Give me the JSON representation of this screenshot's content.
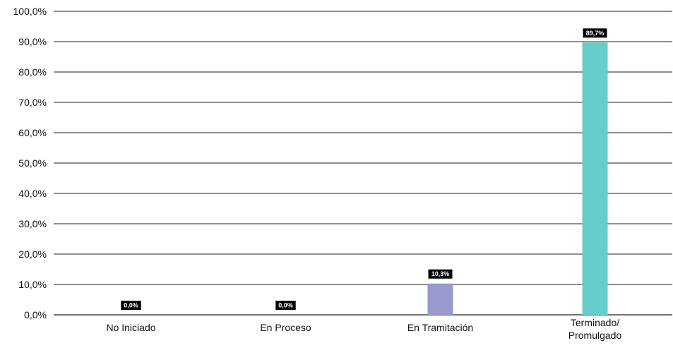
{
  "chart_data": {
    "type": "bar",
    "categories": [
      [
        "No Iniciado"
      ],
      [
        "En Proceso"
      ],
      [
        "En Tramitación"
      ],
      [
        "Terminado/",
        "Promulgado"
      ]
    ],
    "values": [
      0.0,
      0.0,
      10.3,
      89.7
    ],
    "data_labels": [
      "0,0%",
      "0,0%",
      "10,3%",
      "89,7%"
    ],
    "bar_colors": [
      "#9999cc",
      "#9999cc",
      "#9999cc",
      "#66cccc"
    ],
    "ylim": [
      0,
      100
    ],
    "yticks": [
      0,
      10,
      20,
      30,
      40,
      50,
      60,
      70,
      80,
      90,
      100
    ],
    "ytick_labels": [
      "0,0%",
      "10,0%",
      "20,0%",
      "30,0%",
      "40,0%",
      "50,0%",
      "60,0%",
      "70,0%",
      "80,0%",
      "90,0%",
      "100,0%"
    ],
    "grid": true,
    "legend": "none",
    "title": "",
    "xlabel": "",
    "ylabel": ""
  }
}
